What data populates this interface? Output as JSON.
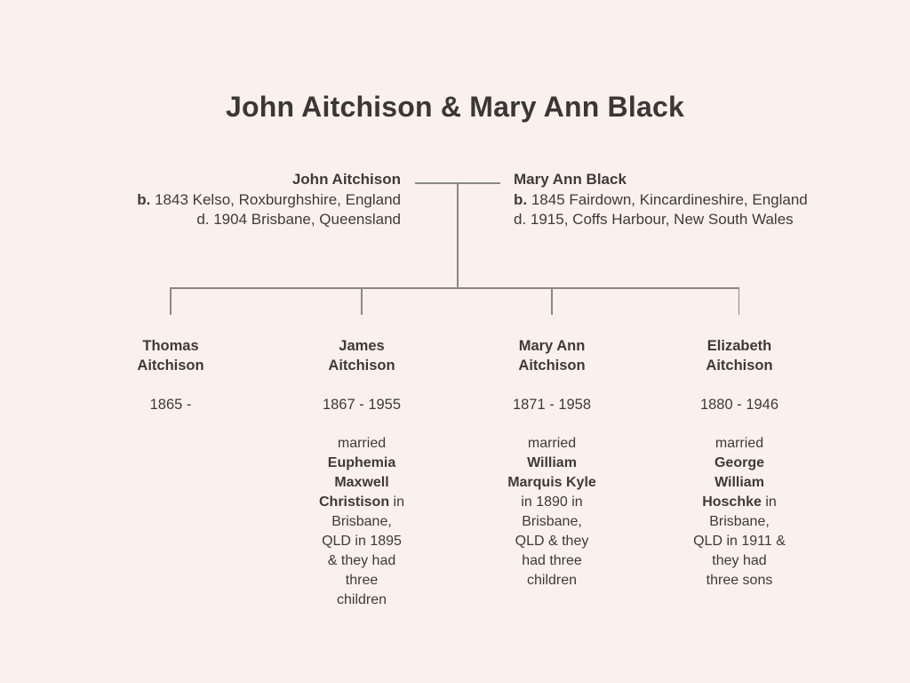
{
  "colors": {
    "background": "#fbf1ec",
    "text": "#3e3a38",
    "connector_line": "#8b8784"
  },
  "title": "John Aitchison & Mary Ann Black",
  "parents": {
    "father": {
      "name": "John Aitchison",
      "birth": [
        {
          "text": "b.",
          "bold": true
        },
        {
          "text": " 1843 Kelso, Roxburghshire, England",
          "bold": false
        }
      ],
      "death": "d. 1904 Brisbane, Queensland"
    },
    "mother": {
      "name": "Mary Ann Black",
      "birth": [
        {
          "text": "b.",
          "bold": true
        },
        {
          "text": " 1845 Fairdown, Kincardineshire, England",
          "bold": false
        }
      ],
      "death": "d. 1915, Coffs Harbour, New South Wales"
    }
  },
  "children": [
    {
      "name": "Thomas\nAitchison",
      "years": "1865 -",
      "marriage": []
    },
    {
      "name": "James\nAitchison",
      "years": "1867 - 1955",
      "marriage": [
        {
          "text": "married\n",
          "bold": false
        },
        {
          "text": "Euphemia\nMaxwell\nChristison",
          "bold": true
        },
        {
          "text": " in\nBrisbane,\nQLD in 1895\n& they had\nthree\nchildren",
          "bold": false
        }
      ]
    },
    {
      "name": "Mary Ann\nAitchison",
      "years": "1871 - 1958",
      "marriage": [
        {
          "text": "married\n",
          "bold": false
        },
        {
          "text": "William\nMarquis Kyle",
          "bold": true
        },
        {
          "text": "\nin 1890 in\nBrisbane,\nQLD & they\nhad three\nchildren",
          "bold": false
        }
      ]
    },
    {
      "name": "Elizabeth\nAitchison",
      "years": "1880 - 1946",
      "marriage": [
        {
          "text": "married\n",
          "bold": false
        },
        {
          "text": "George\nWilliam\nHoschke",
          "bold": true
        },
        {
          "text": " in\nBrisbane,\nQLD in 1911 &\nthey had\nthree sons",
          "bold": false
        }
      ]
    }
  ]
}
